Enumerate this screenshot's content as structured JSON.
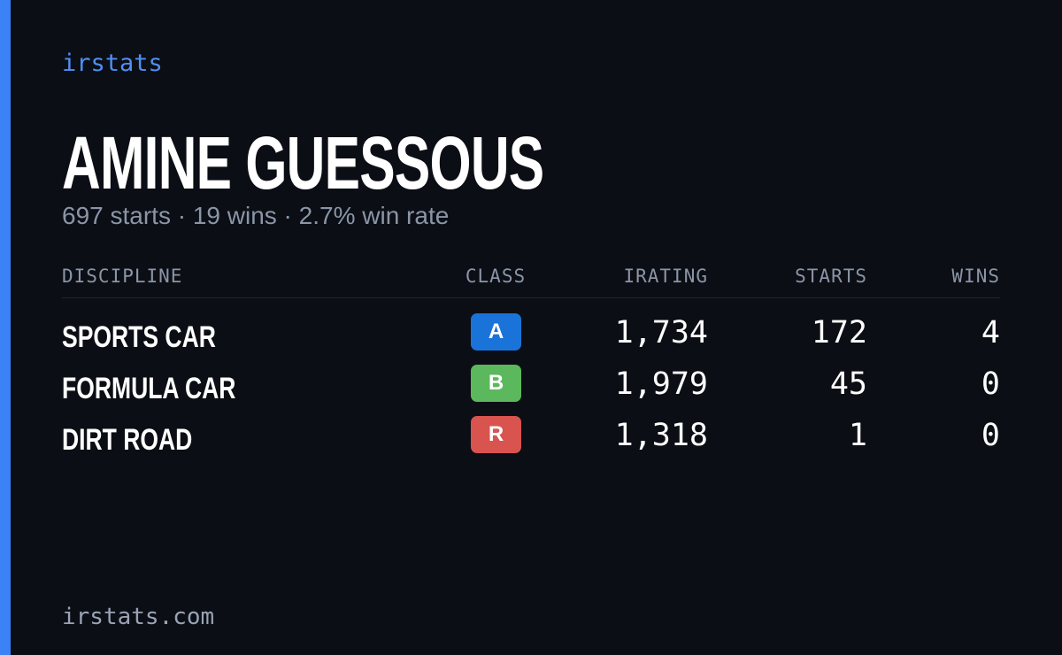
{
  "brand": "irstats",
  "profile": {
    "name": "AMINE GUESSOUS",
    "summary": "697 starts · 19 wins · 2.7% win rate"
  },
  "table": {
    "columns": [
      "DISCIPLINE",
      "CLASS",
      "IRATING",
      "STARTS",
      "WINS"
    ],
    "rows": [
      [
        "SPORTS CAR",
        "A",
        "1,734",
        "172",
        "4"
      ],
      [
        "FORMULA CAR",
        "B",
        "1,979",
        "45",
        "0"
      ],
      [
        "DIRT ROAD",
        "R",
        "1,318",
        "1",
        "0"
      ]
    ]
  },
  "footer": "irstats.com"
}
